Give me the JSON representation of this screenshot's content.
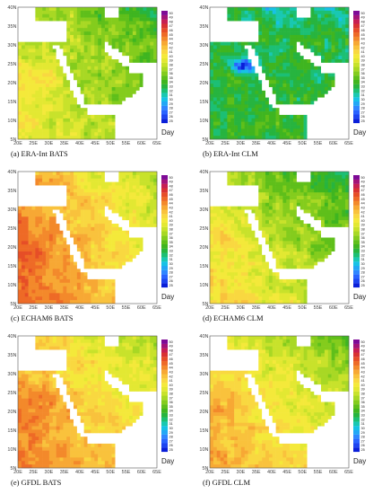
{
  "figure": {
    "panels": [
      {
        "caption": "(a)   ERA-Int BATS",
        "scheme": "era_bats"
      },
      {
        "caption": "(b)   ERA-Int CLM",
        "scheme": "era_clm"
      },
      {
        "caption": "(c)   ECHAM6 BATS",
        "scheme": "echam_bats"
      },
      {
        "caption": "(d)   ECHAM6 CLM",
        "scheme": "echam_clm"
      },
      {
        "caption": "(e)   GFDL BATS",
        "scheme": "gfdl_bats"
      },
      {
        "caption": "(f)   GFDL CLM",
        "scheme": "gfdl_clm"
      }
    ],
    "colorbar_unit": "Day"
  },
  "chart_data": {
    "type": "heatmap",
    "x_ticks": [
      "20E",
      "25E",
      "30E",
      "35E",
      "40E",
      "45E",
      "50E",
      "55E",
      "60E",
      "65E"
    ],
    "y_ticks": [
      "5N",
      "10N",
      "15N",
      "20N",
      "25N",
      "30N",
      "35N",
      "40N"
    ],
    "xlim": [
      20,
      65
    ],
    "ylim": [
      5,
      40
    ],
    "colorbar_levels": [
      25,
      26,
      27,
      28,
      29,
      30,
      31,
      32,
      33,
      34,
      35,
      36,
      37,
      38,
      39,
      40,
      41,
      42,
      43,
      44,
      45,
      46,
      47,
      48,
      49,
      50
    ],
    "colorbar_colors": [
      "#0a1fd9",
      "#1e44f0",
      "#2a63ff",
      "#2f86ff",
      "#22a7f5",
      "#17c2e6",
      "#19c8b2",
      "#1cbf74",
      "#27b43f",
      "#3fb520",
      "#5fbf1a",
      "#84cc1d",
      "#a8d824",
      "#c8e22b",
      "#e3e832",
      "#f4e93a",
      "#f9d840",
      "#f9c23c",
      "#f7a834",
      "#f3892b",
      "#ee6a26",
      "#e64e27",
      "#d83232",
      "#c71f52",
      "#a31378",
      "#7e0a96"
    ],
    "colorbar_unit": "Day"
  }
}
